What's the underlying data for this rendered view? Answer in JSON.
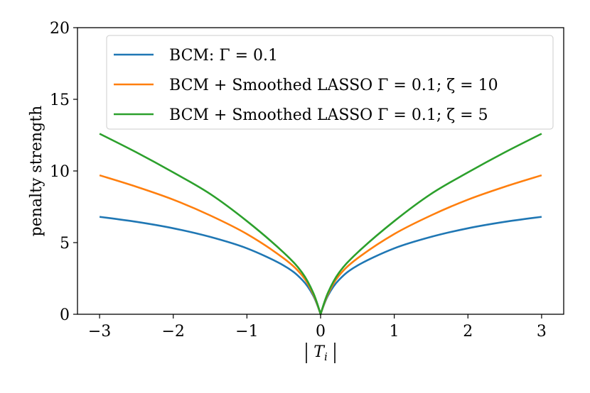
{
  "chart_data": {
    "type": "line",
    "xlabel": "|T_i|",
    "ylabel": "penalty strength",
    "xlim": [
      -3.3,
      3.3
    ],
    "ylim": [
      0,
      20
    ],
    "xticks": [
      -3,
      -2,
      -1,
      0,
      1,
      2,
      3
    ],
    "xtick_labels": [
      "−3",
      "−2",
      "−1",
      "0",
      "1",
      "2",
      "3"
    ],
    "yticks": [
      0,
      5,
      10,
      15,
      20
    ],
    "ytick_labels": [
      "0",
      "5",
      "10",
      "15",
      "20"
    ],
    "grid": false,
    "legend_position": "top-right",
    "x": [
      -3,
      -2.5,
      -2,
      -1.5,
      -1,
      -0.5,
      -0.25,
      -0.1,
      0,
      0.1,
      0.25,
      0.5,
      1,
      1.5,
      2,
      2.5,
      3
    ],
    "series": [
      {
        "name": "BCM: Γ = 0.1",
        "color": "#1f77b4",
        "values": [
          6.8,
          6.45,
          6.0,
          5.4,
          4.6,
          3.4,
          2.4,
          1.3,
          0,
          1.3,
          2.4,
          3.4,
          4.6,
          5.4,
          6.0,
          6.45,
          6.8
        ]
      },
      {
        "name": "BCM + Smoothed LASSO Γ = 0.1; ζ = 10",
        "color": "#ff7f0e",
        "values": [
          9.7,
          8.9,
          8.0,
          6.9,
          5.6,
          3.9,
          2.7,
          1.4,
          0,
          1.4,
          2.7,
          3.9,
          5.6,
          6.9,
          8.0,
          8.9,
          9.7
        ]
      },
      {
        "name": "BCM + Smoothed LASSO Γ = 0.1; ζ = 5",
        "color": "#2ca02c",
        "values": [
          12.6,
          11.3,
          9.9,
          8.4,
          6.5,
          4.3,
          2.9,
          1.5,
          0,
          1.5,
          2.9,
          4.3,
          6.5,
          8.4,
          9.9,
          11.3,
          12.6
        ]
      }
    ]
  }
}
